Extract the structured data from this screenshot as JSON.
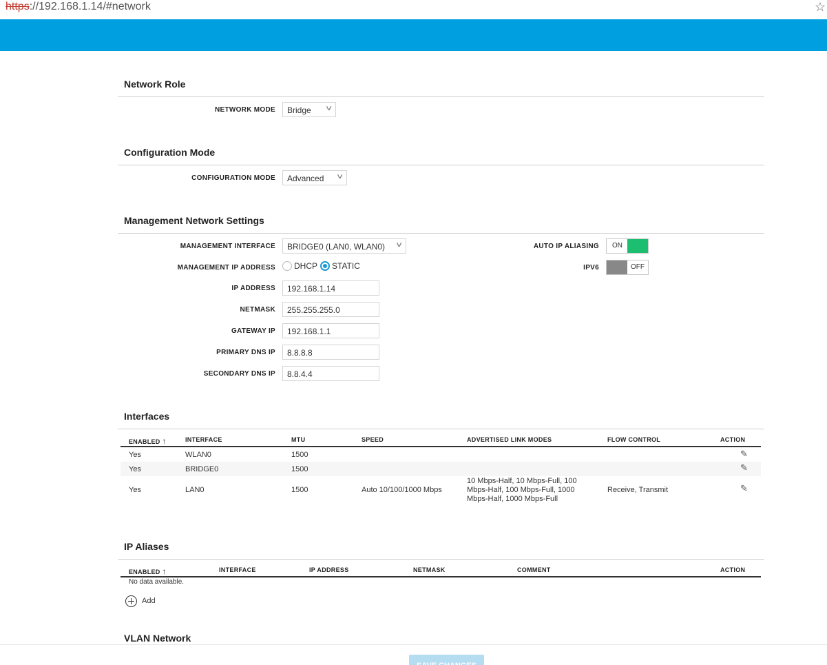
{
  "browser": {
    "url_scheme": "https",
    "url_rest_host": "://192.168.1.14",
    "url_rest_hash": "/#network",
    "star_icon": "star-icon"
  },
  "network_role": {
    "title": "Network Role",
    "network_mode_label": "NETWORK MODE",
    "network_mode_value": "Bridge"
  },
  "configuration_mode": {
    "title": "Configuration Mode",
    "label": "CONFIGURATION MODE",
    "value": "Advanced"
  },
  "management": {
    "title": "Management Network Settings",
    "interface_label": "MANAGEMENT INTERFACE",
    "interface_value": "BRIDGE0 (LAN0, WLAN0)",
    "ip_address_mode_label": "MANAGEMENT IP ADDRESS",
    "dhcp_label": "DHCP",
    "static_label": "STATIC",
    "selected_mode": "STATIC",
    "ip_label": "IP ADDRESS",
    "ip_value": "192.168.1.14",
    "netmask_label": "NETMASK",
    "netmask_value": "255.255.255.0",
    "gateway_label": "GATEWAY IP",
    "gateway_value": "192.168.1.1",
    "primary_dns_label": "PRIMARY DNS IP",
    "primary_dns_value": "8.8.8.8",
    "secondary_dns_label": "SECONDARY DNS IP",
    "secondary_dns_value": "8.8.4.4",
    "auto_ip_aliasing_label": "AUTO IP ALIASING",
    "auto_ip_aliasing_state": "ON",
    "ipv6_label": "IPV6",
    "ipv6_state": "OFF"
  },
  "interfaces": {
    "title": "Interfaces",
    "columns": [
      "ENABLED",
      "INTERFACE",
      "MTU",
      "SPEED",
      "ADVERTISED LINK MODES",
      "FLOW CONTROL",
      "ACTION"
    ],
    "sort_arrow": "↑",
    "rows": [
      {
        "enabled": "Yes",
        "interface": "WLAN0",
        "mtu": "1500",
        "speed": "",
        "link_modes": [
          "",
          "",
          ""
        ],
        "flow": ""
      },
      {
        "enabled": "Yes",
        "interface": "BRIDGE0",
        "mtu": "1500",
        "speed": "",
        "link_modes": [
          "",
          "",
          ""
        ],
        "flow": ""
      },
      {
        "enabled": "Yes",
        "interface": "LAN0",
        "mtu": "1500",
        "speed": "Auto 10/100/1000 Mbps",
        "link_modes": [
          "10 Mbps-Half, 10 Mbps-Full, 100",
          "Mbps-Half, 100 Mbps-Full, 1000",
          "Mbps-Half, 1000 Mbps-Full"
        ],
        "flow": "Receive, Transmit"
      }
    ]
  },
  "ip_aliases": {
    "title": "IP Aliases",
    "columns": [
      "ENABLED",
      "INTERFACE",
      "IP ADDRESS",
      "NETMASK",
      "COMMENT",
      "ACTION"
    ],
    "sort_arrow": "↑",
    "empty_text": "No data available.",
    "add_label": "Add"
  },
  "vlan": {
    "title": "VLAN Network"
  },
  "footer": {
    "save_label": "SAVE CHANGES"
  },
  "colors": {
    "banner": "#009fdf",
    "toggle_on": "#1dbe6f",
    "toggle_off": "#888888",
    "radio_accent": "#1a9bd7"
  }
}
